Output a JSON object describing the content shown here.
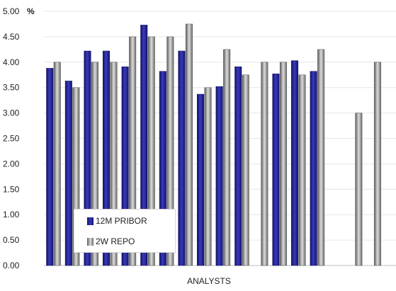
{
  "chart_data": {
    "type": "bar",
    "title": "",
    "unit": "%",
    "xlabel": "ANALYSTS",
    "ylabel": "",
    "ylim": [
      0,
      5
    ],
    "yticks": [
      "0.00",
      "0.50",
      "1.00",
      "1.50",
      "2.00",
      "2.50",
      "3.00",
      "3.50",
      "4.00",
      "4.50",
      "5.00"
    ],
    "legend_position": "bottom-left",
    "grid": true,
    "categories": [
      "",
      "",
      "",
      "",
      "",
      "",
      "",
      "",
      "",
      "",
      "",
      "",
      "",
      "",
      "",
      "",
      "",
      "",
      ""
    ],
    "series": [
      {
        "name": "12M PRIBOR",
        "color": "#1f1f8a",
        "values": [
          3.88,
          3.63,
          4.22,
          4.22,
          3.91,
          4.73,
          3.82,
          4.22,
          3.37,
          3.52,
          3.91,
          null,
          3.77,
          4.03,
          3.82,
          null,
          null,
          null,
          null
        ]
      },
      {
        "name": "2W REPO",
        "color": "#8c8c8c",
        "values": [
          4.0,
          3.5,
          4.0,
          4.0,
          4.5,
          4.5,
          4.5,
          4.75,
          3.5,
          4.25,
          3.75,
          4.0,
          4.0,
          3.75,
          4.25,
          null,
          3.0,
          4.0,
          4.25
        ]
      }
    ]
  }
}
